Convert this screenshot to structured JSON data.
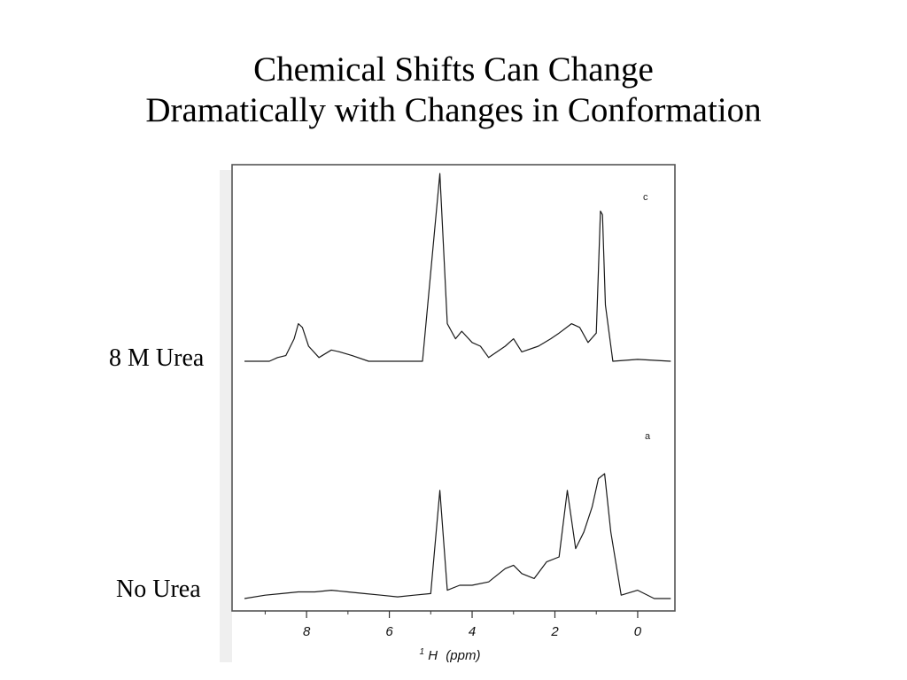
{
  "slide": {
    "title_line1": "Chemical Shifts Can Change",
    "title_line2": "Dramatically with Changes in Conformation"
  },
  "chart_data": {
    "type": "line",
    "title": "Chemical Shifts Can Change Dramatically with Changes in Conformation",
    "xlabel": "¹H (ppm)",
    "xlabel_parts": {
      "superscript": "1",
      "nucleus": "H",
      "unit": "(ppm)"
    },
    "x_reversed": true,
    "xlim": [
      9.8,
      -0.9
    ],
    "x_ticks": [
      8,
      6,
      4,
      2,
      0
    ],
    "x_tick_labels": [
      "8",
      "6",
      "4",
      "2",
      "0"
    ],
    "grid": false,
    "series": [
      {
        "name": "8 M Urea",
        "panel_letter": "c",
        "points": [
          [
            9.5,
            0.0
          ],
          [
            8.9,
            0.0
          ],
          [
            8.7,
            0.02
          ],
          [
            8.5,
            0.03
          ],
          [
            8.3,
            0.12
          ],
          [
            8.2,
            0.2
          ],
          [
            8.1,
            0.18
          ],
          [
            7.95,
            0.08
          ],
          [
            7.7,
            0.02
          ],
          [
            7.4,
            0.06
          ],
          [
            7.2,
            0.05
          ],
          [
            6.9,
            0.03
          ],
          [
            6.5,
            0.0
          ],
          [
            5.2,
            0.0
          ],
          [
            4.78,
            1.0
          ],
          [
            4.6,
            0.2
          ],
          [
            4.4,
            0.12
          ],
          [
            4.25,
            0.16
          ],
          [
            4.0,
            0.1
          ],
          [
            3.8,
            0.08
          ],
          [
            3.6,
            0.02
          ],
          [
            3.2,
            0.08
          ],
          [
            3.0,
            0.12
          ],
          [
            2.8,
            0.05
          ],
          [
            2.4,
            0.08
          ],
          [
            2.1,
            0.12
          ],
          [
            1.9,
            0.15
          ],
          [
            1.6,
            0.2
          ],
          [
            1.4,
            0.18
          ],
          [
            1.2,
            0.1
          ],
          [
            1.0,
            0.15
          ],
          [
            0.9,
            0.8
          ],
          [
            0.85,
            0.78
          ],
          [
            0.78,
            0.3
          ],
          [
            0.6,
            0.0
          ],
          [
            0.0,
            0.01
          ],
          [
            -0.8,
            0.0
          ]
        ]
      },
      {
        "name": "No Urea",
        "panel_letter": "a",
        "points": [
          [
            9.5,
            0.0
          ],
          [
            9.0,
            0.02
          ],
          [
            8.6,
            0.03
          ],
          [
            8.2,
            0.04
          ],
          [
            7.8,
            0.04
          ],
          [
            7.4,
            0.05
          ],
          [
            7.0,
            0.04
          ],
          [
            6.6,
            0.03
          ],
          [
            6.2,
            0.02
          ],
          [
            5.8,
            0.01
          ],
          [
            5.4,
            0.02
          ],
          [
            5.0,
            0.03
          ],
          [
            4.78,
            0.65
          ],
          [
            4.6,
            0.05
          ],
          [
            4.3,
            0.08
          ],
          [
            4.0,
            0.08
          ],
          [
            3.6,
            0.1
          ],
          [
            3.2,
            0.18
          ],
          [
            3.0,
            0.2
          ],
          [
            2.8,
            0.15
          ],
          [
            2.5,
            0.12
          ],
          [
            2.2,
            0.22
          ],
          [
            1.9,
            0.25
          ],
          [
            1.7,
            0.65
          ],
          [
            1.5,
            0.3
          ],
          [
            1.3,
            0.4
          ],
          [
            1.1,
            0.55
          ],
          [
            0.95,
            0.72
          ],
          [
            0.8,
            0.75
          ],
          [
            0.65,
            0.4
          ],
          [
            0.4,
            0.02
          ],
          [
            0.0,
            0.05
          ],
          [
            -0.4,
            0.0
          ],
          [
            -0.8,
            0.0
          ]
        ]
      }
    ]
  }
}
